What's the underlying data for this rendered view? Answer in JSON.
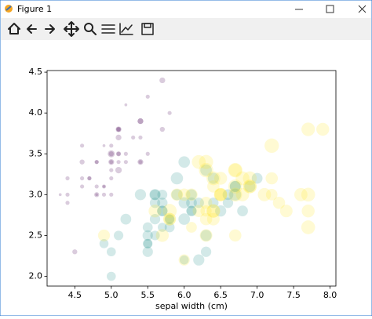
{
  "window": {
    "title": "Figure 1"
  },
  "chart_data": {
    "type": "scatter",
    "xlabel": "sepal width (cm)",
    "xlim": [
      4.12,
      8.08
    ],
    "ylim": [
      1.88,
      4.52
    ],
    "xticks": [
      4.5,
      {
        "value": 5.0,
        "label": "5.0"
      },
      5.5,
      {
        "value": 6.0,
        "label": "6.0"
      },
      6.5,
      {
        "value": 7.0,
        "label": "7.0"
      },
      7.5,
      {
        "value": 8.0,
        "label": "8.0"
      }
    ],
    "yticks": [
      {
        "value": 2.0,
        "label": "2.0"
      },
      2.5,
      {
        "value": 3.0,
        "label": "3.0"
      },
      3.5,
      {
        "value": 4.0,
        "label": "4.0"
      },
      4.5
    ],
    "alpha": 0.2,
    "series": [
      {
        "color": "#440154",
        "x": [
          5.1,
          4.9,
          4.7,
          4.6,
          5.0,
          5.4,
          4.6,
          5.0,
          4.4,
          4.9,
          5.4,
          4.8,
          4.8,
          4.3,
          5.8,
          5.7,
          5.4,
          5.1,
          5.7,
          5.1,
          5.4,
          5.1,
          4.6,
          5.1,
          4.8,
          5.0,
          5.0,
          5.2,
          5.2,
          4.7,
          4.8,
          5.4,
          5.2,
          5.5,
          4.9,
          5.0,
          5.5,
          4.9,
          4.4,
          5.1,
          5.0,
          4.5,
          4.4,
          5.0,
          5.1,
          4.8,
          5.1,
          4.6,
          5.3,
          5.0
        ],
        "values": [
          3.5,
          3.0,
          3.2,
          3.1,
          3.6,
          3.9,
          3.4,
          3.4,
          2.9,
          3.1,
          3.7,
          3.4,
          3.0,
          3.0,
          4.0,
          4.4,
          3.9,
          3.5,
          3.8,
          3.8,
          3.4,
          3.7,
          3.6,
          3.3,
          3.4,
          3.0,
          3.4,
          3.5,
          3.4,
          3.2,
          3.1,
          3.4,
          4.1,
          4.2,
          3.1,
          3.2,
          3.5,
          3.6,
          3.0,
          3.4,
          3.5,
          2.3,
          3.2,
          3.5,
          3.8,
          3.0,
          3.8,
          3.2,
          3.7,
          3.3
        ],
        "sizes": [
          0.2,
          0.2,
          0.2,
          0.2,
          0.2,
          0.4,
          0.3,
          0.2,
          0.2,
          0.1,
          0.2,
          0.2,
          0.1,
          0.1,
          0.2,
          0.4,
          0.4,
          0.3,
          0.3,
          0.3,
          0.2,
          0.4,
          0.2,
          0.5,
          0.2,
          0.2,
          0.4,
          0.2,
          0.2,
          0.2,
          0.2,
          0.4,
          0.1,
          0.2,
          0.2,
          0.2,
          0.2,
          0.1,
          0.2,
          0.2,
          0.3,
          0.3,
          0.2,
          0.6,
          0.4,
          0.3,
          0.2,
          0.2,
          0.2,
          0.2
        ]
      },
      {
        "color": "#21918c",
        "x": [
          7.0,
          6.4,
          6.9,
          5.5,
          6.5,
          5.7,
          6.3,
          4.9,
          6.6,
          5.2,
          5.0,
          5.9,
          6.0,
          6.1,
          5.6,
          6.7,
          5.6,
          5.8,
          6.2,
          5.6,
          5.9,
          6.1,
          6.3,
          6.1,
          6.4,
          6.6,
          6.8,
          6.7,
          6.0,
          5.7,
          5.5,
          5.5,
          5.8,
          6.0,
          5.4,
          6.0,
          6.7,
          6.3,
          5.6,
          5.5,
          5.5,
          6.1,
          5.8,
          5.0,
          5.6,
          5.7,
          5.7,
          6.2,
          5.1,
          5.7
        ],
        "values": [
          3.2,
          3.2,
          3.1,
          2.3,
          2.8,
          2.8,
          3.3,
          2.4,
          2.9,
          2.7,
          2.0,
          3.0,
          2.2,
          2.9,
          2.9,
          3.1,
          3.0,
          2.7,
          2.2,
          2.5,
          3.2,
          2.8,
          2.5,
          2.8,
          2.9,
          3.0,
          2.8,
          3.0,
          2.9,
          2.6,
          2.4,
          2.4,
          2.7,
          2.7,
          3.0,
          3.4,
          3.1,
          2.3,
          3.0,
          2.5,
          2.6,
          3.0,
          2.6,
          2.3,
          2.7,
          3.0,
          2.9,
          2.9,
          2.5,
          2.8
        ],
        "sizes": [
          1.4,
          1.5,
          1.5,
          1.3,
          1.5,
          1.3,
          1.6,
          1.0,
          1.3,
          1.4,
          1.0,
          1.5,
          1.0,
          1.4,
          1.3,
          1.4,
          1.5,
          1.0,
          1.5,
          1.1,
          1.8,
          1.3,
          1.5,
          1.2,
          1.3,
          1.4,
          1.4,
          1.7,
          1.5,
          1.0,
          1.1,
          1.0,
          1.2,
          1.6,
          1.5,
          1.6,
          1.5,
          1.3,
          1.3,
          1.3,
          1.2,
          1.4,
          1.2,
          1.0,
          1.3,
          1.2,
          1.3,
          1.3,
          1.1,
          1.3
        ]
      },
      {
        "color": "#fde725",
        "x": [
          6.3,
          5.8,
          7.1,
          6.3,
          6.5,
          7.6,
          4.9,
          7.3,
          6.7,
          7.2,
          6.5,
          6.4,
          6.8,
          5.7,
          5.8,
          6.4,
          6.5,
          7.7,
          7.7,
          6.0,
          6.9,
          5.6,
          7.7,
          6.3,
          6.7,
          7.2,
          6.2,
          6.1,
          6.4,
          7.2,
          7.4,
          7.9,
          6.4,
          6.3,
          6.1,
          7.7,
          6.3,
          6.4,
          6.0,
          6.9,
          6.7,
          6.9,
          5.8,
          6.8,
          6.7,
          6.7,
          6.3,
          6.5,
          6.2,
          5.9
        ],
        "values": [
          3.3,
          2.7,
          3.0,
          2.9,
          3.0,
          3.0,
          2.5,
          2.9,
          2.5,
          3.6,
          3.2,
          2.7,
          3.0,
          2.5,
          2.8,
          3.2,
          3.0,
          3.8,
          2.6,
          2.2,
          3.2,
          2.8,
          2.8,
          2.7,
          3.3,
          3.2,
          2.8,
          3.0,
          2.8,
          3.0,
          2.8,
          3.8,
          2.8,
          2.8,
          2.6,
          3.0,
          3.4,
          3.1,
          3.0,
          3.1,
          3.1,
          3.1,
          2.7,
          3.2,
          3.3,
          3.0,
          2.5,
          3.0,
          3.4,
          3.0
        ],
        "sizes": [
          2.5,
          1.9,
          2.1,
          1.8,
          2.2,
          2.1,
          1.7,
          1.8,
          1.8,
          2.5,
          2.0,
          1.9,
          2.1,
          2.0,
          2.4,
          2.3,
          1.8,
          2.2,
          2.3,
          1.5,
          2.3,
          2.0,
          2.0,
          1.8,
          2.1,
          1.8,
          1.8,
          1.8,
          2.1,
          1.6,
          1.9,
          2.0,
          2.2,
          1.5,
          1.4,
          2.3,
          2.4,
          1.8,
          1.8,
          2.1,
          2.4,
          2.3,
          1.9,
          2.3,
          2.5,
          2.3,
          1.9,
          2.0,
          2.3,
          1.8
        ]
      }
    ]
  }
}
